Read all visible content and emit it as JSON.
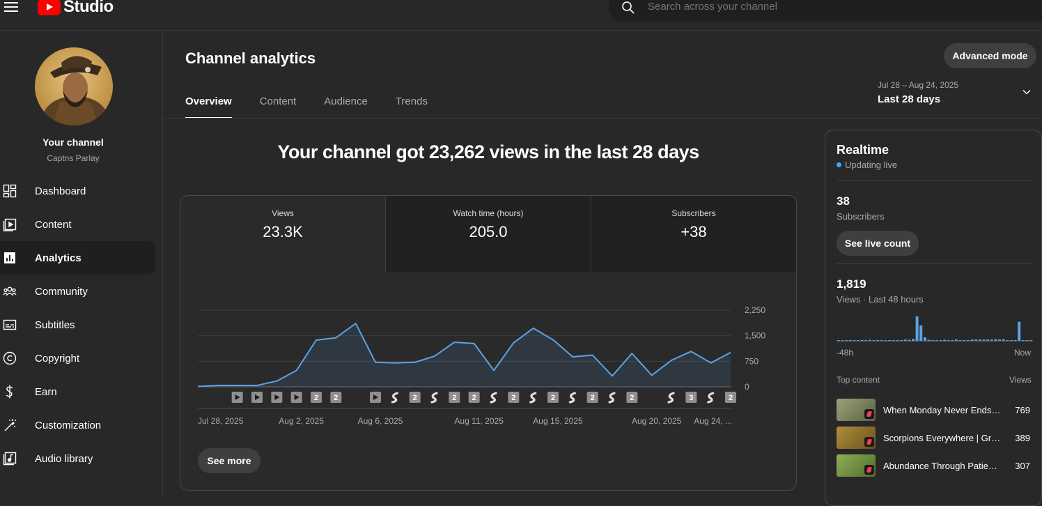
{
  "app": {
    "logo_text": "Studio"
  },
  "search": {
    "placeholder": "Search across your channel"
  },
  "sidebar": {
    "your_channel": "Your channel",
    "channel_name": "Captns Parlay",
    "items": [
      {
        "label": "Dashboard",
        "icon": "dashboard-icon"
      },
      {
        "label": "Content",
        "icon": "content-icon"
      },
      {
        "label": "Analytics",
        "icon": "analytics-icon",
        "active": true
      },
      {
        "label": "Community",
        "icon": "community-icon"
      },
      {
        "label": "Subtitles",
        "icon": "subtitles-icon"
      },
      {
        "label": "Copyright",
        "icon": "copyright-icon"
      },
      {
        "label": "Earn",
        "icon": "earn-icon"
      },
      {
        "label": "Customization",
        "icon": "customization-icon"
      },
      {
        "label": "Audio library",
        "icon": "audio-library-icon"
      }
    ]
  },
  "header": {
    "title": "Channel analytics",
    "advanced_mode": "Advanced mode",
    "tabs": [
      "Overview",
      "Content",
      "Audience",
      "Trends"
    ],
    "date_range": "Jul 28 – Aug 24, 2025",
    "date_label": "Last 28 days"
  },
  "overview": {
    "headline": "Your channel got 23,262 views in the last 28 days",
    "metrics": [
      {
        "label": "Views",
        "value": "23.3K"
      },
      {
        "label": "Watch time (hours)",
        "value": "205.0"
      },
      {
        "label": "Subscribers",
        "value": "+38"
      }
    ],
    "see_more": "See more"
  },
  "chart_data": {
    "type": "area",
    "series": [
      {
        "name": "Views",
        "values": [
          10,
          40,
          40,
          40,
          170,
          480,
          1370,
          1440,
          1860,
          720,
          700,
          720,
          900,
          1310,
          1270,
          480,
          1290,
          1720,
          1380,
          880,
          930,
          320,
          980,
          340,
          780,
          1040,
          700,
          1010
        ]
      }
    ],
    "x_tick_labels": [
      "Jul 28, 2025",
      "Aug 2, 2025",
      "Aug 6, 2025",
      "Aug 11, 2025",
      "Aug 15, 2025",
      "Aug 20, 2025",
      "Aug 24, ..."
    ],
    "y_ticks": [
      0,
      750,
      1500,
      2250
    ],
    "y_tick_labels": [
      "0",
      "750",
      "1,500",
      "2,250"
    ],
    "ylim": [
      0,
      2250
    ],
    "grid": true,
    "color": "#5ba3e6",
    "publish_markers": [
      {
        "index": 2,
        "kind": "video"
      },
      {
        "index": 3,
        "kind": "video"
      },
      {
        "index": 4,
        "kind": "video"
      },
      {
        "index": 5,
        "kind": "video"
      },
      {
        "index": 6,
        "kind": "count",
        "count": "2"
      },
      {
        "index": 7,
        "kind": "count",
        "count": "2"
      },
      {
        "index": 9,
        "kind": "video"
      },
      {
        "index": 10,
        "kind": "short"
      },
      {
        "index": 11,
        "kind": "count",
        "count": "2"
      },
      {
        "index": 12,
        "kind": "short"
      },
      {
        "index": 13,
        "kind": "count",
        "count": "2"
      },
      {
        "index": 14,
        "kind": "count",
        "count": "2"
      },
      {
        "index": 15,
        "kind": "short"
      },
      {
        "index": 16,
        "kind": "count",
        "count": "2"
      },
      {
        "index": 17,
        "kind": "short"
      },
      {
        "index": 18,
        "kind": "count",
        "count": "2"
      },
      {
        "index": 19,
        "kind": "short"
      },
      {
        "index": 20,
        "kind": "count",
        "count": "2"
      },
      {
        "index": 21,
        "kind": "short"
      },
      {
        "index": 22,
        "kind": "count",
        "count": "2"
      },
      {
        "index": 24,
        "kind": "short"
      },
      {
        "index": 25,
        "kind": "count",
        "count": "3"
      },
      {
        "index": 26,
        "kind": "short"
      },
      {
        "index": 27,
        "kind": "count",
        "count": "2"
      }
    ]
  },
  "realtime": {
    "title": "Realtime",
    "status": "Updating live",
    "subscribers_value": "38",
    "subscribers_label": "Subscribers",
    "see_live_count": "See live count",
    "views_value": "1,819",
    "views_label": "Views · Last 48 hours",
    "hourly_views": [
      2,
      2,
      2,
      2,
      2,
      2,
      1,
      2,
      3,
      2,
      2,
      2,
      2,
      2,
      2,
      2,
      2,
      4,
      3,
      6,
      78,
      49,
      11,
      3,
      2,
      2,
      2,
      3,
      2,
      2,
      4,
      2,
      2,
      2,
      4,
      4,
      4,
      4,
      4,
      4,
      5,
      4,
      5,
      2,
      2,
      2,
      61,
      2,
      2,
      2
    ],
    "range_start": "-48h",
    "range_end": "Now",
    "top_content_label": "Top content",
    "views_column": "Views",
    "top_content": [
      {
        "title": "When Monday Never Ends…",
        "views": "769",
        "thumb": "#7b7f58"
      },
      {
        "title": "Scorpions Everywhere | Gr…",
        "views": "389",
        "thumb": "#8a7030"
      },
      {
        "title": "Abundance Through Patien…",
        "views": "307",
        "thumb": "#6e8c3c"
      }
    ]
  }
}
